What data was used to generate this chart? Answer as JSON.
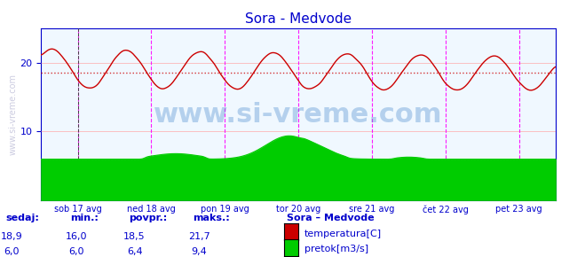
{
  "title": "Sora - Medvode",
  "title_color": "#0000cc",
  "bg_color": "#ffffff",
  "plot_bg_color": "#f0f8ff",
  "grid_color": "#ffaaaa",
  "grid_minor_color": "#ffcccc",
  "ylim": [
    0,
    25
  ],
  "xlim": [
    0,
    336
  ],
  "yticks": [
    10,
    20
  ],
  "ytick_color": "#0000cc",
  "xtick_labels": [
    "sob 17 avg",
    "ned 18 avg",
    "pon 19 avg",
    "tor 20 avg",
    "sre 21 avg",
    "čet 22 avg",
    "pet 23 avg"
  ],
  "xtick_positions": [
    24,
    72,
    120,
    168,
    216,
    264,
    312
  ],
  "vline_color": "#ff00ff",
  "vline_positions": [
    24,
    72,
    120,
    168,
    216,
    264,
    312
  ],
  "hline_temp_color": "#cc0000",
  "hline_temp_y": 18.5,
  "hline_flow_color": "#00aa00",
  "hline_flow_y": 6.0,
  "temp_color": "#cc0000",
  "flow_color": "#00cc00",
  "watermark_text": "www.si-vreme.com",
  "watermark_color": "#4488cc",
  "watermark_alpha": 0.4,
  "ylabel_text": "www.si-vreme.com",
  "ylabel_color": "#aaaaaa",
  "legend_title": "Sora – Medvode",
  "legend_items": [
    "temperatura[C]",
    "pretok[m3/s]"
  ],
  "legend_colors": [
    "#cc0000",
    "#00cc00"
  ],
  "stats_labels": [
    "sedaj:",
    "min.:",
    "povpr.:",
    "maks.:"
  ],
  "stats_temp": [
    18.9,
    16.0,
    18.5,
    21.7
  ],
  "stats_flow": [
    6.0,
    6.0,
    6.4,
    9.4
  ],
  "stats_color": "#0000cc",
  "spine_color": "#0000cc",
  "border_color": "#0000cc"
}
